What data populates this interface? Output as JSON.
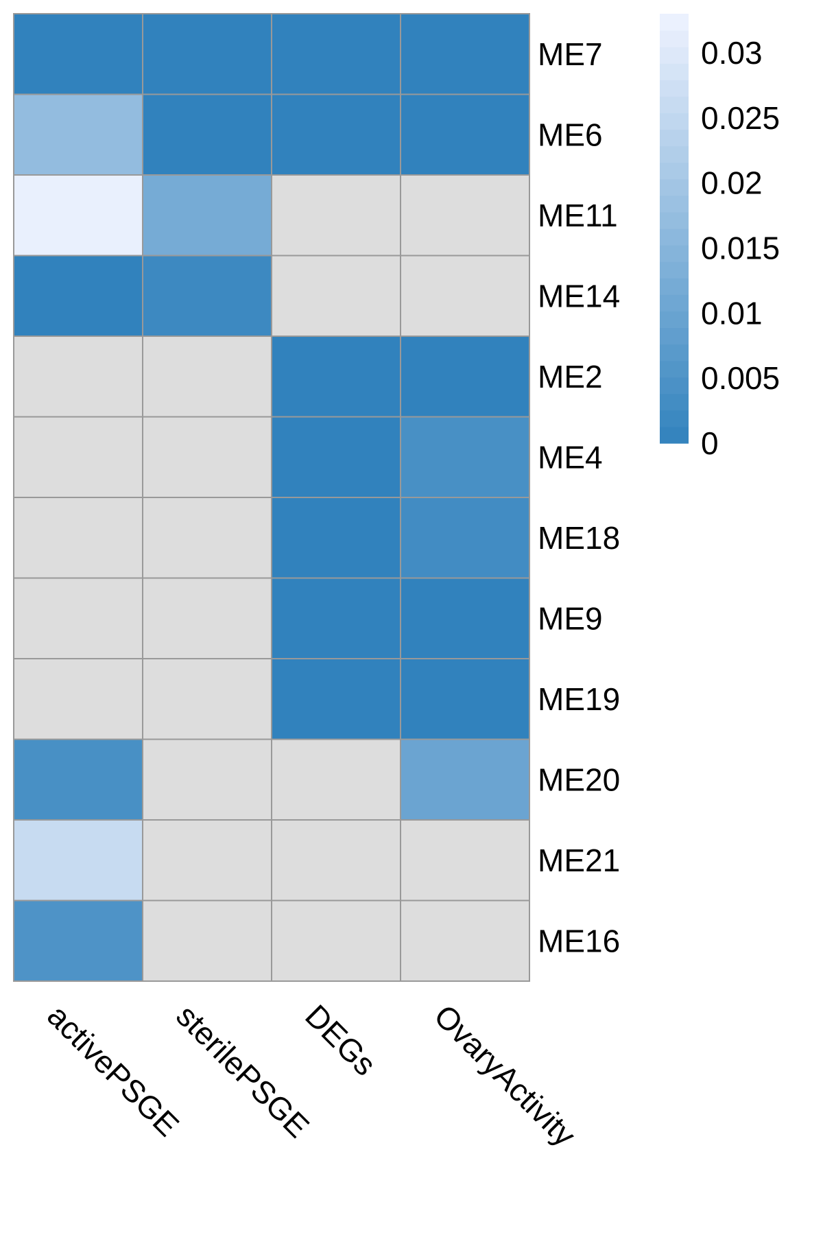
{
  "chart_data": {
    "type": "heatmap",
    "title": "",
    "xlabel": "",
    "ylabel": "",
    "columns": [
      "activePSGE",
      "sterilePSGE",
      "DEGs",
      "OvaryActivity"
    ],
    "rows": [
      "ME7",
      "ME6",
      "ME11",
      "ME14",
      "ME2",
      "ME4",
      "ME18",
      "ME9",
      "ME19",
      "ME20",
      "ME21",
      "ME16"
    ],
    "values": [
      [
        0.0,
        0.0,
        0.0,
        0.0
      ],
      [
        0.017,
        0.0,
        0.0,
        0.0
      ],
      [
        0.032,
        0.012,
        null,
        null
      ],
      [
        0.0,
        0.002,
        null,
        null
      ],
      [
        null,
        null,
        0.0,
        0.0
      ],
      [
        null,
        null,
        0.0,
        0.004
      ],
      [
        null,
        null,
        0.0,
        0.003
      ],
      [
        null,
        null,
        0.0,
        0.0
      ],
      [
        null,
        null,
        0.0,
        0.0
      ],
      [
        0.004,
        null,
        null,
        0.01
      ],
      [
        0.026,
        null,
        null,
        null
      ],
      [
        0.005,
        null,
        null,
        null
      ]
    ],
    "missing_color": "#dddddd",
    "grid_color": "#999999",
    "color_scale": {
      "min": 0,
      "max": 0.033,
      "low_color": "#3182bd",
      "high_color": "#eff3ff"
    },
    "legend": {
      "placement": "top-right",
      "ticks": [
        {
          "value": 0,
          "label": "0"
        },
        {
          "value": 0.005,
          "label": "0.005"
        },
        {
          "value": 0.01,
          "label": "0.01"
        },
        {
          "value": 0.015,
          "label": "0.015"
        },
        {
          "value": 0.02,
          "label": "0.02"
        },
        {
          "value": 0.025,
          "label": "0.025"
        },
        {
          "value": 0.03,
          "label": "0.03"
        }
      ]
    }
  }
}
